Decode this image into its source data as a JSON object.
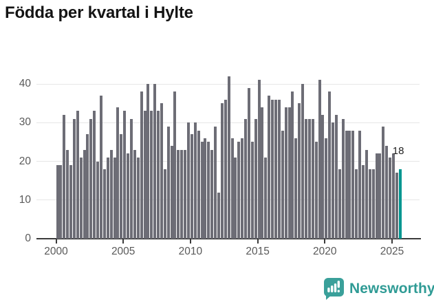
{
  "title": "Födda per kvartal i Hylte",
  "chart_data": {
    "type": "bar",
    "title": "Födda per kvartal i Hylte",
    "x_unit": "quarter",
    "x_start": "2000 Q1",
    "x_end": "2025 Q3",
    "ylim": [
      0,
      43
    ],
    "grid": "horizontal",
    "y_ticks": [
      0,
      10,
      20,
      30,
      40
    ],
    "x_ticks": [
      "2000",
      "2005",
      "2010",
      "2015",
      "2020",
      "2025"
    ],
    "values": [
      19,
      19,
      32,
      23,
      19,
      31,
      33,
      21,
      23,
      27,
      31,
      33,
      20,
      37,
      18,
      21,
      23,
      21,
      34,
      27,
      33,
      22,
      31,
      23,
      21,
      38,
      33,
      40,
      33,
      40,
      33,
      35,
      18,
      29,
      24,
      38,
      23,
      23,
      23,
      30,
      27,
      30,
      28,
      25,
      26,
      25,
      23,
      29,
      12,
      35,
      36,
      42,
      26,
      21,
      25,
      26,
      31,
      39,
      25,
      31,
      41,
      34,
      21,
      37,
      36,
      36,
      36,
      28,
      34,
      34,
      38,
      26,
      35,
      40,
      31,
      31,
      31,
      25,
      41,
      32,
      26,
      38,
      30,
      32,
      18,
      31,
      28,
      28,
      28,
      18,
      28,
      19,
      23,
      18,
      18,
      22,
      22,
      29,
      24,
      21,
      22,
      17,
      18
    ],
    "highlight": {
      "index": 102,
      "value": 18,
      "label": "18"
    }
  },
  "annotation": {
    "text": "18"
  },
  "branding": {
    "name": "Newsworthy"
  },
  "colors": {
    "bar": "#6d6d76",
    "highlight": "#009690",
    "grid": "#e6e6e6",
    "axis": "#3a3a3a",
    "tick_label": "#595959",
    "title": "#141414",
    "annotation": "#1f1f1f",
    "brand": "#2f9b95",
    "background": "#ffffff"
  }
}
